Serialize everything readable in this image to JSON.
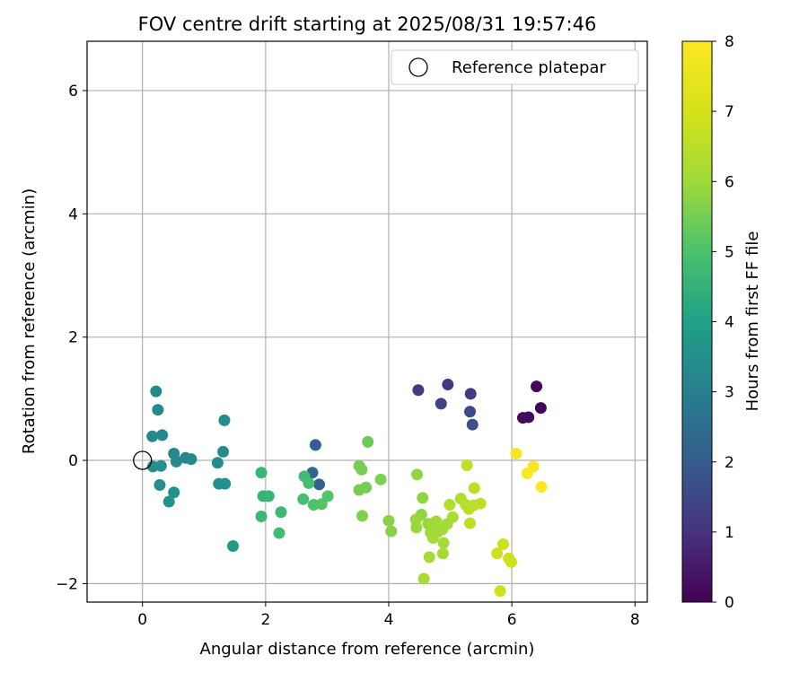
{
  "chart_data": {
    "type": "scatter",
    "title": "FOV centre drift starting at 2025/08/31 19:57:46",
    "xlabel": "Angular distance from reference (arcmin)",
    "ylabel": "Rotation from reference (arcmin)",
    "xlim": [
      -0.9,
      8.2
    ],
    "ylim": [
      -2.3,
      6.8
    ],
    "xticks": [
      0,
      2,
      4,
      6,
      8
    ],
    "yticks": [
      -2,
      0,
      2,
      4,
      6
    ],
    "grid": true,
    "legend": {
      "position": "top-right",
      "label": "Reference platepar"
    },
    "reference_point": {
      "x": 0,
      "y": 0
    },
    "colorbar": {
      "label": "Hours from first FF file",
      "min": 0,
      "max": 8,
      "ticks": [
        0,
        1,
        2,
        3,
        4,
        5,
        6,
        7,
        8
      ],
      "colormap": "viridis"
    },
    "points": [
      {
        "x": 6.4,
        "y": 1.2,
        "h": 0.1
      },
      {
        "x": 6.47,
        "y": 0.85,
        "h": 0.1
      },
      {
        "x": 6.27,
        "y": 0.7,
        "h": 0.2
      },
      {
        "x": 6.18,
        "y": 0.69,
        "h": 0.2
      },
      {
        "x": 4.96,
        "y": 1.23,
        "h": 1.1
      },
      {
        "x": 4.48,
        "y": 1.14,
        "h": 1.2
      },
      {
        "x": 5.33,
        "y": 1.08,
        "h": 1.2
      },
      {
        "x": 4.85,
        "y": 0.92,
        "h": 1.4
      },
      {
        "x": 5.32,
        "y": 0.79,
        "h": 1.6
      },
      {
        "x": 5.36,
        "y": 0.58,
        "h": 1.7
      },
      {
        "x": 2.81,
        "y": 0.25,
        "h": 2.1
      },
      {
        "x": 2.87,
        "y": -0.39,
        "h": 2.1
      },
      {
        "x": 2.76,
        "y": -0.2,
        "h": 2.3
      },
      {
        "x": 1.33,
        "y": 0.65,
        "h": 3.4
      },
      {
        "x": 1.31,
        "y": 0.14,
        "h": 3.4
      },
      {
        "x": 1.22,
        "y": -0.04,
        "h": 3.4
      },
      {
        "x": 1.24,
        "y": -0.38,
        "h": 3.5
      },
      {
        "x": 1.34,
        "y": -0.38,
        "h": 3.5
      },
      {
        "x": 1.47,
        "y": -1.39,
        "h": 3.8
      },
      {
        "x": 0.22,
        "y": 1.12,
        "h": 3.3
      },
      {
        "x": 0.25,
        "y": 0.82,
        "h": 3.3
      },
      {
        "x": 0.16,
        "y": 0.39,
        "h": 3.3
      },
      {
        "x": 0.32,
        "y": 0.41,
        "h": 3.3
      },
      {
        "x": 0.51,
        "y": 0.11,
        "h": 3.3
      },
      {
        "x": 0.55,
        "y": -0.02,
        "h": 3.3
      },
      {
        "x": 0.7,
        "y": 0.04,
        "h": 3.3
      },
      {
        "x": 0.79,
        "y": 0.02,
        "h": 3.3
      },
      {
        "x": 0.17,
        "y": -0.1,
        "h": 3.5
      },
      {
        "x": 0.3,
        "y": -0.09,
        "h": 3.5
      },
      {
        "x": 0.28,
        "y": -0.4,
        "h": 3.5
      },
      {
        "x": 0.51,
        "y": -0.52,
        "h": 3.6
      },
      {
        "x": 0.43,
        "y": -0.67,
        "h": 3.6
      },
      {
        "x": 1.93,
        "y": -0.2,
        "h": 4.6
      },
      {
        "x": 1.96,
        "y": -0.58,
        "h": 4.6
      },
      {
        "x": 2.05,
        "y": -0.58,
        "h": 4.6
      },
      {
        "x": 1.93,
        "y": -0.91,
        "h": 4.7
      },
      {
        "x": 2.25,
        "y": -0.84,
        "h": 4.7
      },
      {
        "x": 2.22,
        "y": -1.18,
        "h": 4.8
      },
      {
        "x": 2.63,
        "y": -0.26,
        "h": 4.8
      },
      {
        "x": 2.7,
        "y": -0.37,
        "h": 4.9
      },
      {
        "x": 2.61,
        "y": -0.63,
        "h": 4.9
      },
      {
        "x": 2.78,
        "y": -0.72,
        "h": 5.0
      },
      {
        "x": 2.91,
        "y": -0.71,
        "h": 5.1
      },
      {
        "x": 3.01,
        "y": -0.58,
        "h": 5.1
      },
      {
        "x": 3.66,
        "y": 0.3,
        "h": 5.4
      },
      {
        "x": 3.52,
        "y": -0.09,
        "h": 5.5
      },
      {
        "x": 3.56,
        "y": -0.15,
        "h": 5.5
      },
      {
        "x": 3.63,
        "y": -0.44,
        "h": 5.5
      },
      {
        "x": 3.52,
        "y": -0.48,
        "h": 5.5
      },
      {
        "x": 3.87,
        "y": -0.31,
        "h": 5.6
      },
      {
        "x": 3.57,
        "y": -0.9,
        "h": 5.6
      },
      {
        "x": 4.0,
        "y": -0.98,
        "h": 5.7
      },
      {
        "x": 4.04,
        "y": -1.15,
        "h": 5.7
      },
      {
        "x": 4.46,
        "y": -0.23,
        "h": 5.8
      },
      {
        "x": 4.55,
        "y": -0.61,
        "h": 5.8
      },
      {
        "x": 4.53,
        "y": -0.88,
        "h": 5.8
      },
      {
        "x": 4.44,
        "y": -0.96,
        "h": 5.9
      },
      {
        "x": 4.45,
        "y": -1.09,
        "h": 5.9
      },
      {
        "x": 4.64,
        "y": -1.03,
        "h": 5.9
      },
      {
        "x": 4.72,
        "y": -1.05,
        "h": 6.0
      },
      {
        "x": 4.77,
        "y": -0.99,
        "h": 6.0
      },
      {
        "x": 4.68,
        "y": -1.17,
        "h": 6.0
      },
      {
        "x": 4.8,
        "y": -1.16,
        "h": 6.0
      },
      {
        "x": 4.72,
        "y": -1.26,
        "h": 6.1
      },
      {
        "x": 4.87,
        "y": -1.12,
        "h": 6.1
      },
      {
        "x": 4.95,
        "y": -1.03,
        "h": 6.1
      },
      {
        "x": 4.89,
        "y": -1.34,
        "h": 6.1
      },
      {
        "x": 4.88,
        "y": -1.51,
        "h": 6.1
      },
      {
        "x": 4.66,
        "y": -1.57,
        "h": 6.1
      },
      {
        "x": 4.57,
        "y": -1.92,
        "h": 6.2
      },
      {
        "x": 5.04,
        "y": -0.92,
        "h": 6.2
      },
      {
        "x": 5.17,
        "y": -0.62,
        "h": 6.3
      },
      {
        "x": 4.99,
        "y": -0.72,
        "h": 6.4
      },
      {
        "x": 5.25,
        "y": -0.72,
        "h": 6.5
      },
      {
        "x": 5.3,
        "y": -0.79,
        "h": 6.5
      },
      {
        "x": 5.38,
        "y": -0.73,
        "h": 6.5
      },
      {
        "x": 5.49,
        "y": -0.7,
        "h": 6.6
      },
      {
        "x": 5.39,
        "y": -0.45,
        "h": 6.6
      },
      {
        "x": 5.27,
        "y": -0.08,
        "h": 6.6
      },
      {
        "x": 5.32,
        "y": -1.02,
        "h": 6.6
      },
      {
        "x": 5.86,
        "y": -1.36,
        "h": 6.9
      },
      {
        "x": 5.76,
        "y": -1.51,
        "h": 6.9
      },
      {
        "x": 5.95,
        "y": -1.59,
        "h": 6.9
      },
      {
        "x": 5.99,
        "y": -1.65,
        "h": 6.9
      },
      {
        "x": 5.81,
        "y": -2.12,
        "h": 6.9
      },
      {
        "x": 6.07,
        "y": 0.11,
        "h": 7.8
      },
      {
        "x": 6.35,
        "y": -0.1,
        "h": 7.9
      },
      {
        "x": 6.25,
        "y": -0.21,
        "h": 7.9
      },
      {
        "x": 6.48,
        "y": -0.43,
        "h": 8.0
      }
    ]
  }
}
